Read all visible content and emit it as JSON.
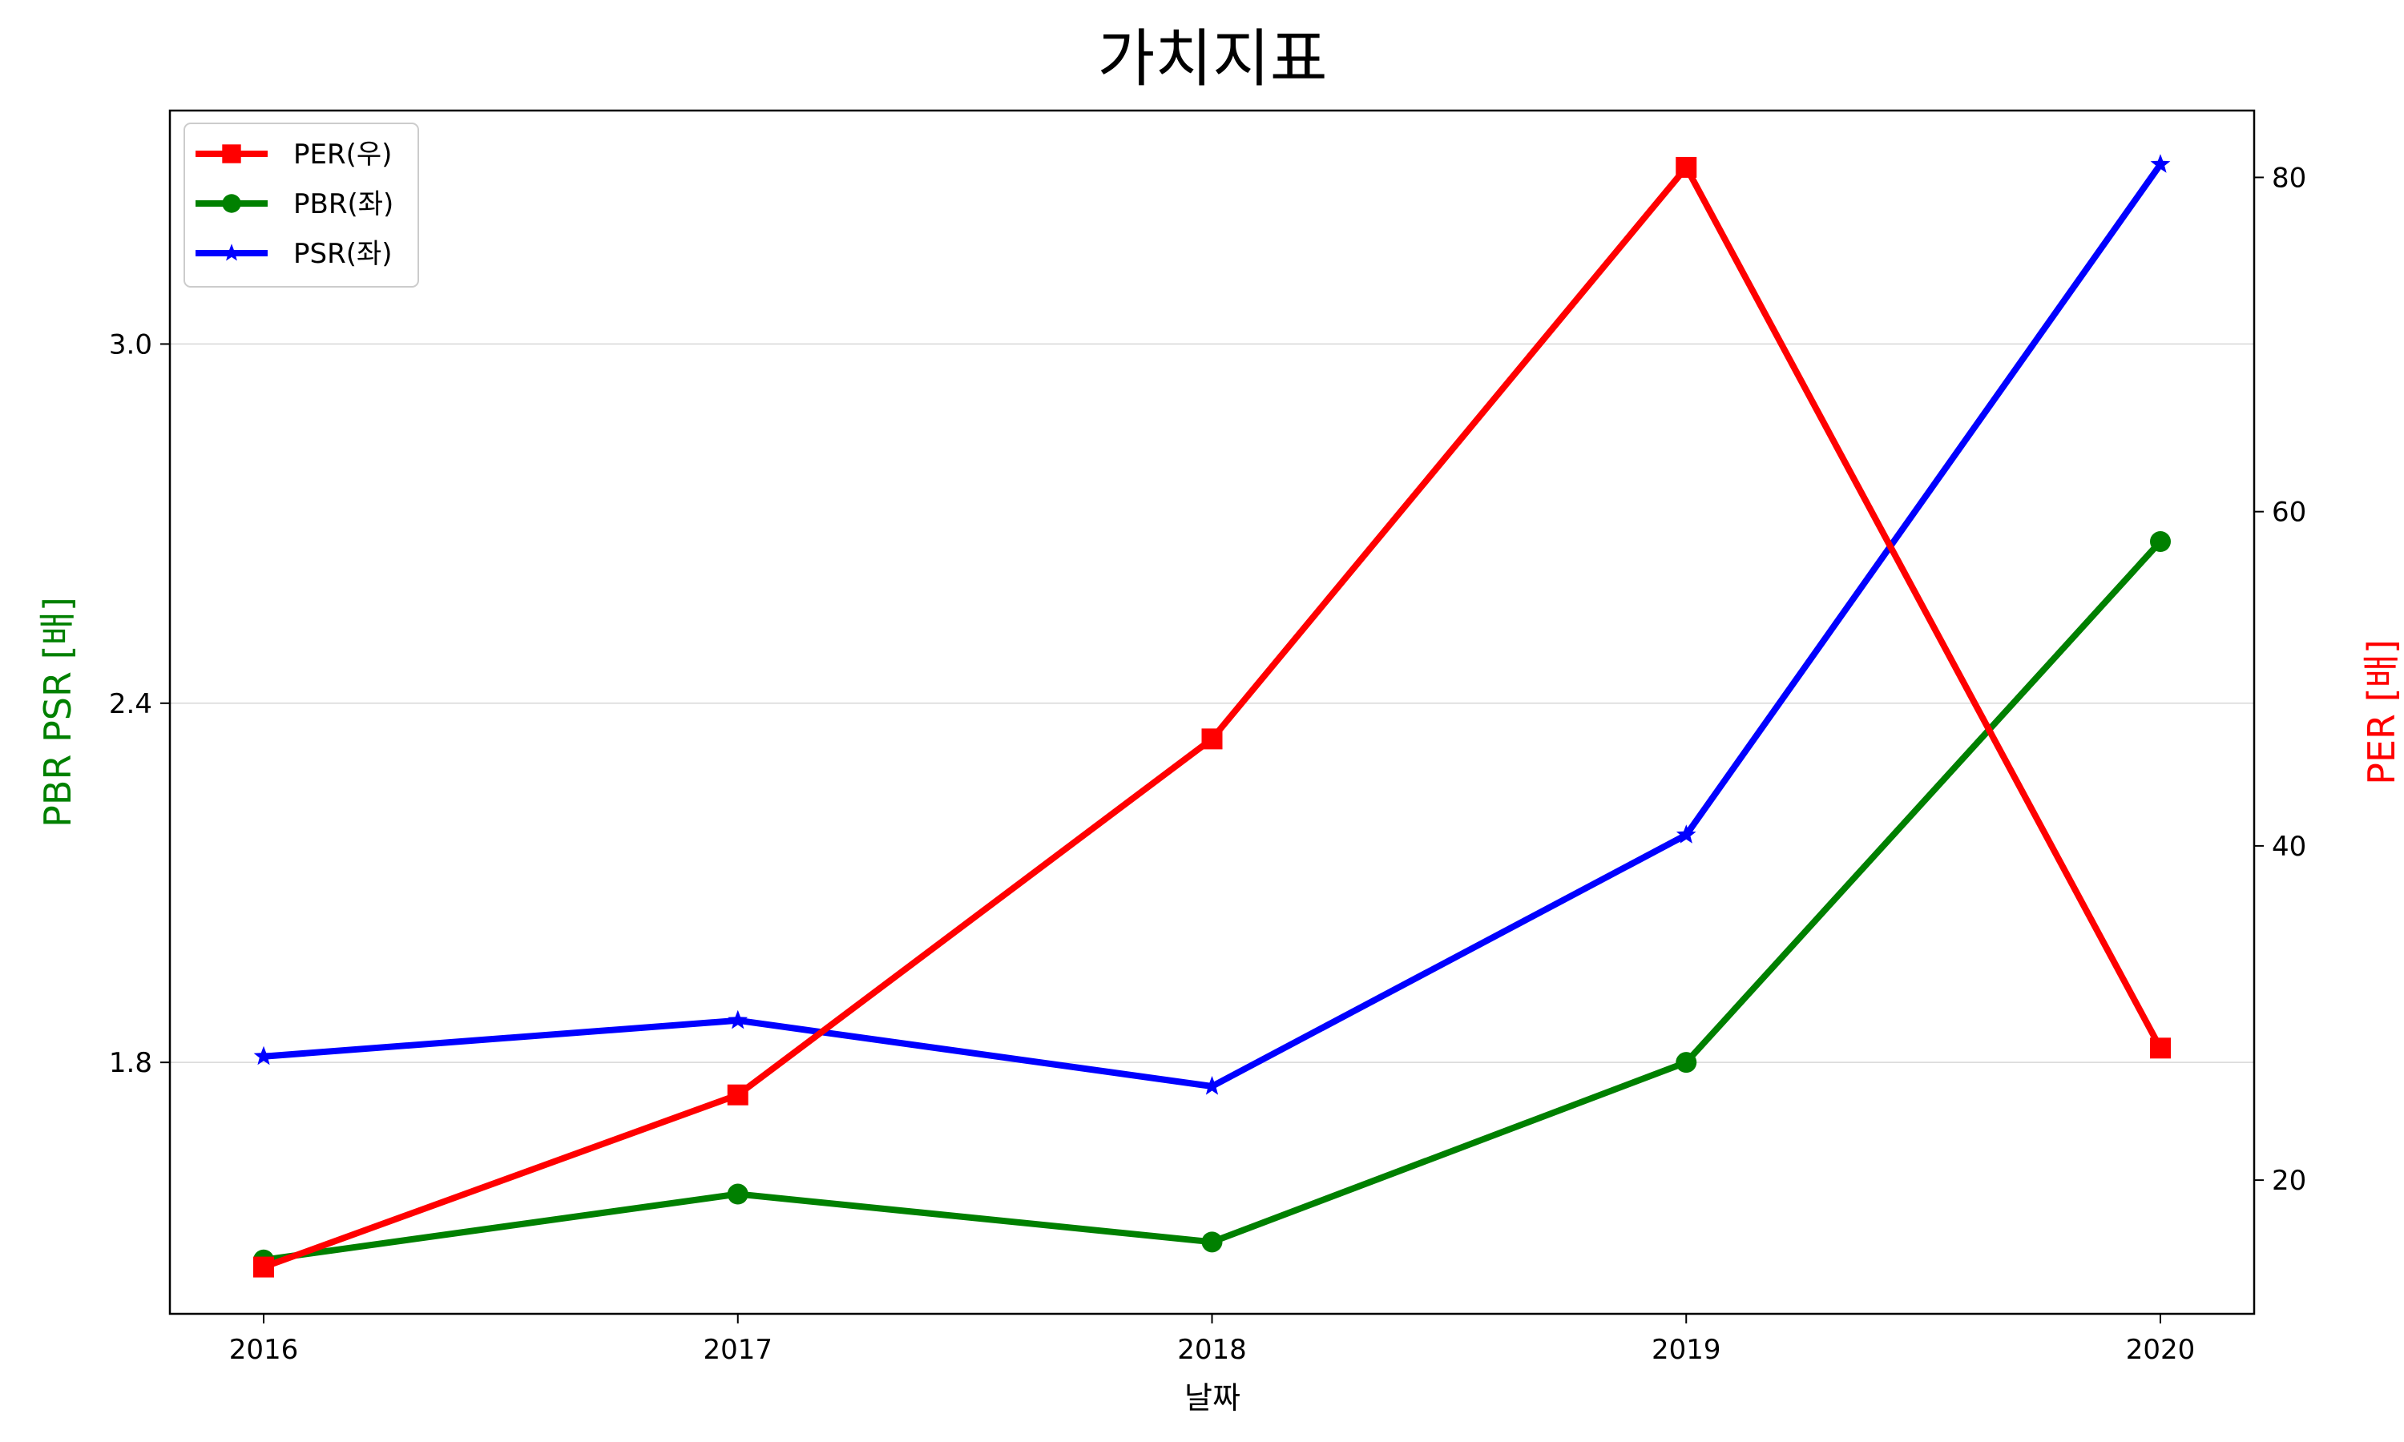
{
  "chart_data": {
    "type": "line",
    "title": "가치지표",
    "xlabel": "날짜",
    "ylabel_left": "PBR PSR [배]",
    "ylabel_right": "PER [배]",
    "categories": [
      "2016",
      "2017",
      "2018",
      "2019",
      "2020"
    ],
    "y_left": {
      "ticks": [
        1.8,
        2.4,
        3.0
      ],
      "tick_labels": [
        "1.8",
        "2.4",
        "3.0"
      ],
      "lim": [
        1.38,
        3.39
      ]
    },
    "y_right": {
      "ticks": [
        20,
        40,
        60,
        80
      ],
      "tick_labels": [
        "20",
        "40",
        "60",
        "80"
      ],
      "lim": [
        12.0,
        84.0
      ]
    },
    "grid": "horizontal-left-axis",
    "legend": "top-left",
    "series": [
      {
        "name": "PER(우)",
        "axis": "right",
        "color": "#ff0000",
        "marker": "square",
        "values": [
          14.8,
          25.1,
          46.4,
          80.6,
          27.9
        ]
      },
      {
        "name": "PBR(좌)",
        "axis": "left",
        "color": "#008000",
        "marker": "circle",
        "values": [
          1.47,
          1.58,
          1.5,
          1.8,
          2.67
        ]
      },
      {
        "name": "PSR(좌)",
        "axis": "left",
        "color": "#0000ff",
        "marker": "star",
        "values": [
          1.81,
          1.87,
          1.76,
          2.18,
          3.3
        ]
      }
    ],
    "label_colors": {
      "left": "#008000",
      "right": "#ff0000"
    }
  }
}
